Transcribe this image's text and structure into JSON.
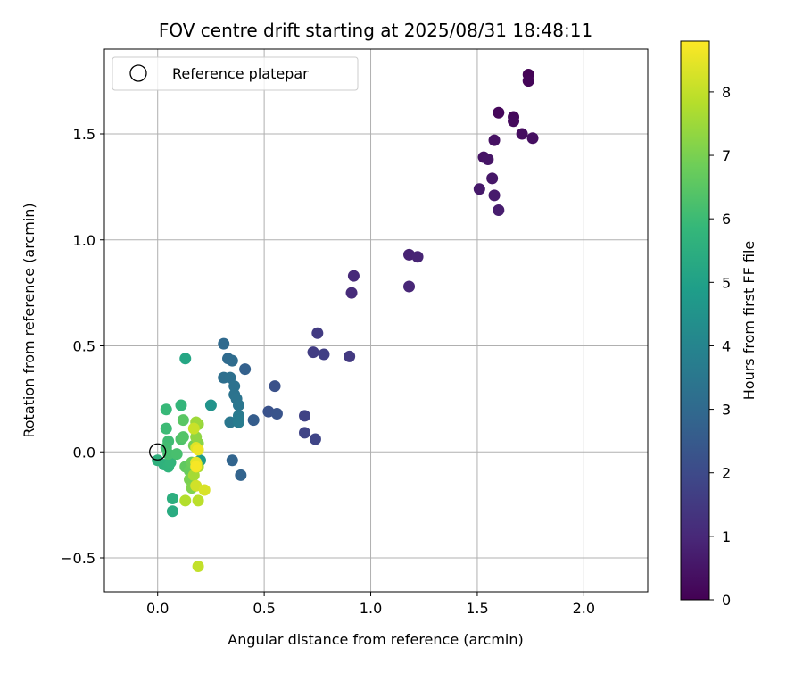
{
  "chart_data": {
    "type": "scatter",
    "title": "FOV centre drift starting at 2025/08/31 18:48:11",
    "xlabel": "Angular distance from reference (arcmin)",
    "ylabel": "Rotation from reference (arcmin)",
    "xlim": [
      -0.25,
      2.3
    ],
    "ylim": [
      -0.66,
      1.9
    ],
    "x_ticks": [
      0.0,
      0.5,
      1.0,
      1.5,
      2.0
    ],
    "x_tick_labels": [
      "0.0",
      "0.5",
      "1.0",
      "1.5",
      "2.0"
    ],
    "y_ticks": [
      -0.5,
      0.0,
      0.5,
      1.0,
      1.5
    ],
    "y_tick_labels": [
      "−0.5",
      "0.0",
      "0.5",
      "1.0",
      "1.5"
    ],
    "grid": true,
    "legend": {
      "placement": "top-left",
      "entries": [
        {
          "label": "Reference platepar",
          "marker": "open-circle"
        }
      ]
    },
    "reference_point": {
      "x": 0.0,
      "y": 0.0
    },
    "colorbar": {
      "label": "Hours from first FF file",
      "colormap": "viridis",
      "range": [
        0,
        8.8
      ],
      "ticks": [
        0,
        1,
        2,
        3,
        4,
        5,
        6,
        7,
        8
      ],
      "tick_labels": [
        "0",
        "1",
        "2",
        "3",
        "4",
        "5",
        "6",
        "7",
        "8"
      ]
    },
    "points": [
      {
        "x": 1.74,
        "y": 1.78,
        "hours": 0.05
      },
      {
        "x": 1.74,
        "y": 1.75,
        "hours": 0.1
      },
      {
        "x": 1.6,
        "y": 1.6,
        "hours": 0.15
      },
      {
        "x": 1.67,
        "y": 1.58,
        "hours": 0.2
      },
      {
        "x": 1.67,
        "y": 1.56,
        "hours": 0.25
      },
      {
        "x": 1.71,
        "y": 1.5,
        "hours": 0.3
      },
      {
        "x": 1.76,
        "y": 1.48,
        "hours": 0.35
      },
      {
        "x": 1.58,
        "y": 1.47,
        "hours": 0.4
      },
      {
        "x": 1.53,
        "y": 1.39,
        "hours": 0.45
      },
      {
        "x": 1.55,
        "y": 1.38,
        "hours": 0.5
      },
      {
        "x": 1.57,
        "y": 1.29,
        "hours": 0.55
      },
      {
        "x": 1.51,
        "y": 1.24,
        "hours": 0.6
      },
      {
        "x": 1.58,
        "y": 1.21,
        "hours": 0.65
      },
      {
        "x": 1.6,
        "y": 1.14,
        "hours": 0.7
      },
      {
        "x": 1.18,
        "y": 0.93,
        "hours": 0.85
      },
      {
        "x": 1.22,
        "y": 0.92,
        "hours": 0.9
      },
      {
        "x": 1.18,
        "y": 0.78,
        "hours": 0.95
      },
      {
        "x": 0.92,
        "y": 0.83,
        "hours": 1.05
      },
      {
        "x": 0.91,
        "y": 0.75,
        "hours": 1.1
      },
      {
        "x": 0.9,
        "y": 0.45,
        "hours": 1.5
      },
      {
        "x": 0.75,
        "y": 0.56,
        "hours": 1.55
      },
      {
        "x": 0.73,
        "y": 0.47,
        "hours": 1.6
      },
      {
        "x": 0.78,
        "y": 0.46,
        "hours": 1.65
      },
      {
        "x": 0.69,
        "y": 0.17,
        "hours": 1.75
      },
      {
        "x": 0.69,
        "y": 0.09,
        "hours": 1.8
      },
      {
        "x": 0.74,
        "y": 0.06,
        "hours": 1.85
      },
      {
        "x": 0.55,
        "y": 0.31,
        "hours": 2.2
      },
      {
        "x": 0.52,
        "y": 0.19,
        "hours": 2.25
      },
      {
        "x": 0.56,
        "y": 0.18,
        "hours": 2.3
      },
      {
        "x": 0.45,
        "y": 0.15,
        "hours": 2.6
      },
      {
        "x": 0.41,
        "y": 0.39,
        "hours": 2.7
      },
      {
        "x": 0.39,
        "y": -0.11,
        "hours": 2.8
      },
      {
        "x": 0.35,
        "y": -0.04,
        "hours": 2.85
      },
      {
        "x": 0.31,
        "y": 0.51,
        "hours": 3.0
      },
      {
        "x": 0.33,
        "y": 0.44,
        "hours": 3.05
      },
      {
        "x": 0.35,
        "y": 0.43,
        "hours": 3.1
      },
      {
        "x": 0.31,
        "y": 0.35,
        "hours": 3.2
      },
      {
        "x": 0.34,
        "y": 0.35,
        "hours": 3.25
      },
      {
        "x": 0.36,
        "y": 0.31,
        "hours": 3.3
      },
      {
        "x": 0.36,
        "y": 0.27,
        "hours": 3.35
      },
      {
        "x": 0.37,
        "y": 0.25,
        "hours": 3.4
      },
      {
        "x": 0.38,
        "y": 0.22,
        "hours": 3.45
      },
      {
        "x": 0.34,
        "y": 0.14,
        "hours": 3.5
      },
      {
        "x": 0.38,
        "y": 0.17,
        "hours": 3.6
      },
      {
        "x": 0.38,
        "y": 0.15,
        "hours": 3.65
      },
      {
        "x": 0.38,
        "y": 0.14,
        "hours": 3.7
      },
      {
        "x": 0.25,
        "y": 0.22,
        "hours": 4.5
      },
      {
        "x": 0.13,
        "y": 0.44,
        "hours": 5.2
      },
      {
        "x": 0.2,
        "y": -0.04,
        "hours": 4.8
      },
      {
        "x": 0.07,
        "y": -0.28,
        "hours": 5.4
      },
      {
        "x": 0.07,
        "y": -0.22,
        "hours": 5.5
      },
      {
        "x": 0.0,
        "y": -0.04,
        "hours": 5.6
      },
      {
        "x": 0.03,
        "y": -0.06,
        "hours": 5.65
      },
      {
        "x": 0.05,
        "y": -0.07,
        "hours": 5.7
      },
      {
        "x": 0.06,
        "y": -0.05,
        "hours": 5.75
      },
      {
        "x": 0.11,
        "y": 0.22,
        "hours": 5.8
      },
      {
        "x": 0.04,
        "y": 0.2,
        "hours": 5.9
      },
      {
        "x": 0.04,
        "y": 0.11,
        "hours": 6.0
      },
      {
        "x": 0.05,
        "y": 0.05,
        "hours": 6.05
      },
      {
        "x": 0.04,
        "y": 0.02,
        "hours": 6.1
      },
      {
        "x": 0.05,
        "y": -0.01,
        "hours": 6.15
      },
      {
        "x": 0.09,
        "y": -0.01,
        "hours": 6.2
      },
      {
        "x": 0.11,
        "y": 0.06,
        "hours": 6.3
      },
      {
        "x": 0.12,
        "y": 0.07,
        "hours": 6.4
      },
      {
        "x": 0.12,
        "y": 0.15,
        "hours": 6.5
      },
      {
        "x": 0.13,
        "y": -0.07,
        "hours": 6.6
      },
      {
        "x": 0.15,
        "y": -0.09,
        "hours": 6.7
      },
      {
        "x": 0.16,
        "y": -0.05,
        "hours": 6.8
      },
      {
        "x": 0.17,
        "y": 0.03,
        "hours": 6.9
      },
      {
        "x": 0.15,
        "y": -0.13,
        "hours": 7.0
      },
      {
        "x": 0.16,
        "y": -0.17,
        "hours": 7.1
      },
      {
        "x": 0.19,
        "y": 0.04,
        "hours": 7.2
      },
      {
        "x": 0.18,
        "y": 0.07,
        "hours": 7.3
      },
      {
        "x": 0.19,
        "y": 0.13,
        "hours": 7.4
      },
      {
        "x": 0.18,
        "y": 0.14,
        "hours": 7.5
      },
      {
        "x": 0.17,
        "y": -0.11,
        "hours": 7.6
      },
      {
        "x": 0.19,
        "y": -0.07,
        "hours": 7.7
      },
      {
        "x": 0.13,
        "y": -0.23,
        "hours": 7.8
      },
      {
        "x": 0.19,
        "y": -0.23,
        "hours": 7.9
      },
      {
        "x": 0.19,
        "y": -0.54,
        "hours": 8.0
      },
      {
        "x": 0.17,
        "y": 0.11,
        "hours": 8.1
      },
      {
        "x": 0.18,
        "y": -0.16,
        "hours": 8.2
      },
      {
        "x": 0.22,
        "y": -0.18,
        "hours": 8.3
      },
      {
        "x": 0.18,
        "y": 0.02,
        "hours": 8.4
      },
      {
        "x": 0.18,
        "y": -0.05,
        "hours": 8.5
      },
      {
        "x": 0.19,
        "y": 0.01,
        "hours": 8.6
      },
      {
        "x": 0.18,
        "y": -0.07,
        "hours": 8.7
      }
    ]
  }
}
